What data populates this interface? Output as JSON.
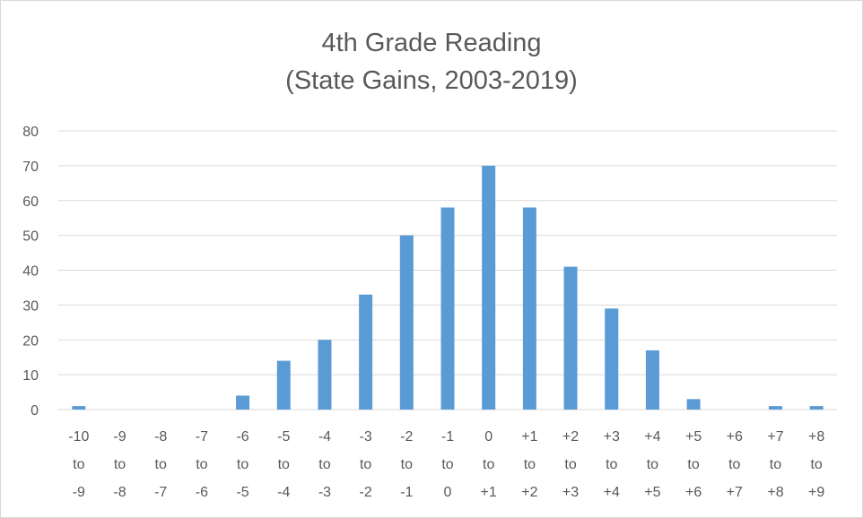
{
  "chart_data": {
    "type": "bar",
    "title_lines": [
      "4th Grade Reading",
      "(State Gains, 2003-2019)"
    ],
    "categories": [
      [
        "-10",
        "to",
        "-9"
      ],
      [
        "-9",
        "to",
        "-8"
      ],
      [
        "-8",
        "to",
        "-7"
      ],
      [
        "-7",
        "to",
        "-6"
      ],
      [
        "-6",
        "to",
        "-5"
      ],
      [
        "-5",
        "to",
        "-4"
      ],
      [
        "-4",
        "to",
        "-3"
      ],
      [
        "-3",
        "to",
        "-2"
      ],
      [
        "-2",
        "to",
        "-1"
      ],
      [
        "-1",
        "to",
        "0"
      ],
      [
        "0",
        "to",
        "+1"
      ],
      [
        "+1",
        "to",
        "+2"
      ],
      [
        "+2",
        "to",
        "+3"
      ],
      [
        "+3",
        "to",
        "+4"
      ],
      [
        "+4",
        "to",
        "+5"
      ],
      [
        "+5",
        "to",
        "+6"
      ],
      [
        "+6",
        "to",
        "+7"
      ],
      [
        "+7",
        "to",
        "+8"
      ],
      [
        "+8",
        "to",
        "+9"
      ]
    ],
    "values": [
      1,
      0,
      0,
      0,
      4,
      14,
      20,
      33,
      50,
      58,
      70,
      58,
      41,
      29,
      17,
      3,
      0,
      1,
      1
    ],
    "ylim": [
      0,
      80
    ],
    "yticks": [
      "0",
      "10",
      "20",
      "30",
      "40",
      "50",
      "60",
      "70",
      "80"
    ],
    "grid": true,
    "legend": "none",
    "colors": {
      "bar": "#5b9bd5",
      "grid": "#d9d9d9",
      "text": "#595959"
    }
  }
}
